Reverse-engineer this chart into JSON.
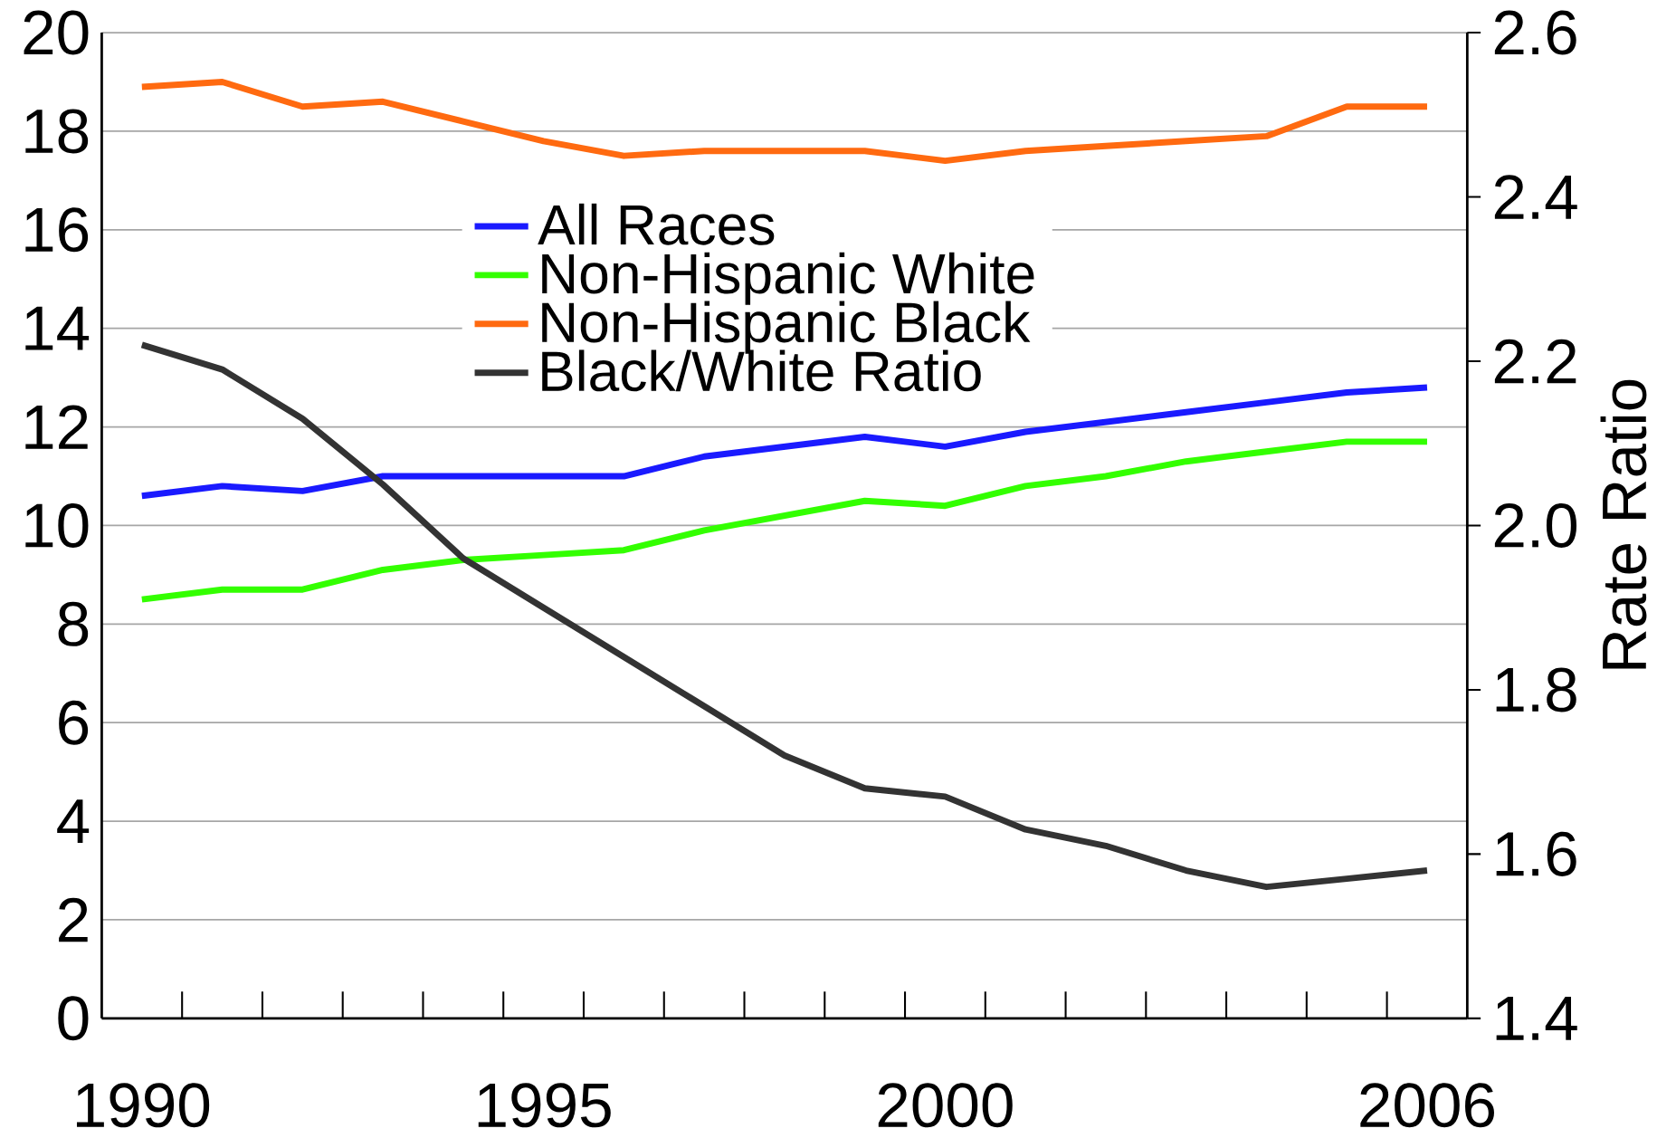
{
  "chart_data": {
    "type": "line",
    "categories": [
      "1990",
      null,
      null,
      null,
      null,
      "1995",
      null,
      null,
      null,
      null,
      "2000",
      null,
      null,
      null,
      null,
      null,
      "2006"
    ],
    "series": [
      {
        "name": "All Races",
        "color": "#1a1aff",
        "values": [
          10.6,
          10.8,
          10.7,
          11.0,
          11.0,
          11.0,
          11.0,
          11.4,
          11.6,
          11.8,
          11.6,
          11.9,
          12.1,
          12.3,
          12.5,
          12.7,
          12.8
        ]
      },
      {
        "name": "Non-Hispanic White",
        "color": "#33ff00",
        "values": [
          8.5,
          8.7,
          8.7,
          9.1,
          9.3,
          9.4,
          9.5,
          9.9,
          10.2,
          10.5,
          10.4,
          10.8,
          11.0,
          11.3,
          11.5,
          11.7,
          11.7
        ]
      },
      {
        "name": "Non-Hispanic Black",
        "color": "#ff6a10",
        "values": [
          18.9,
          19.0,
          18.5,
          18.6,
          18.2,
          17.8,
          17.5,
          17.6,
          17.6,
          17.6,
          17.4,
          17.6,
          17.7,
          17.8,
          17.9,
          18.5,
          18.5
        ]
      },
      {
        "name": "Black/White Ratio",
        "color": "#333333",
        "axis": "y2",
        "values": [
          2.22,
          2.19,
          2.13,
          2.05,
          1.96,
          1.9,
          1.84,
          1.78,
          1.72,
          1.68,
          1.67,
          1.63,
          1.61,
          1.58,
          1.56,
          1.57,
          1.58
        ]
      }
    ],
    "y2label": "Rate Ratio",
    "ylim": [
      0,
      20
    ],
    "yticks": [
      0,
      2,
      4,
      6,
      8,
      10,
      12,
      14,
      16,
      18,
      20
    ],
    "y2lim": [
      1.4,
      2.6
    ],
    "y2ticks": [
      {
        "value": 1.4,
        "label": "1.4"
      },
      {
        "value": 1.6,
        "label": "1.6"
      },
      {
        "value": 1.8,
        "label": "1.8"
      },
      {
        "value": 2.0,
        "label": "2.0"
      },
      {
        "value": 2.2,
        "label": "2.2"
      },
      {
        "value": 2.4,
        "label": "2.4"
      },
      {
        "value": 2.6,
        "label": "2.6"
      }
    ],
    "grid": "y",
    "legend": "top",
    "line_style": "solid",
    "marker": "none"
  }
}
